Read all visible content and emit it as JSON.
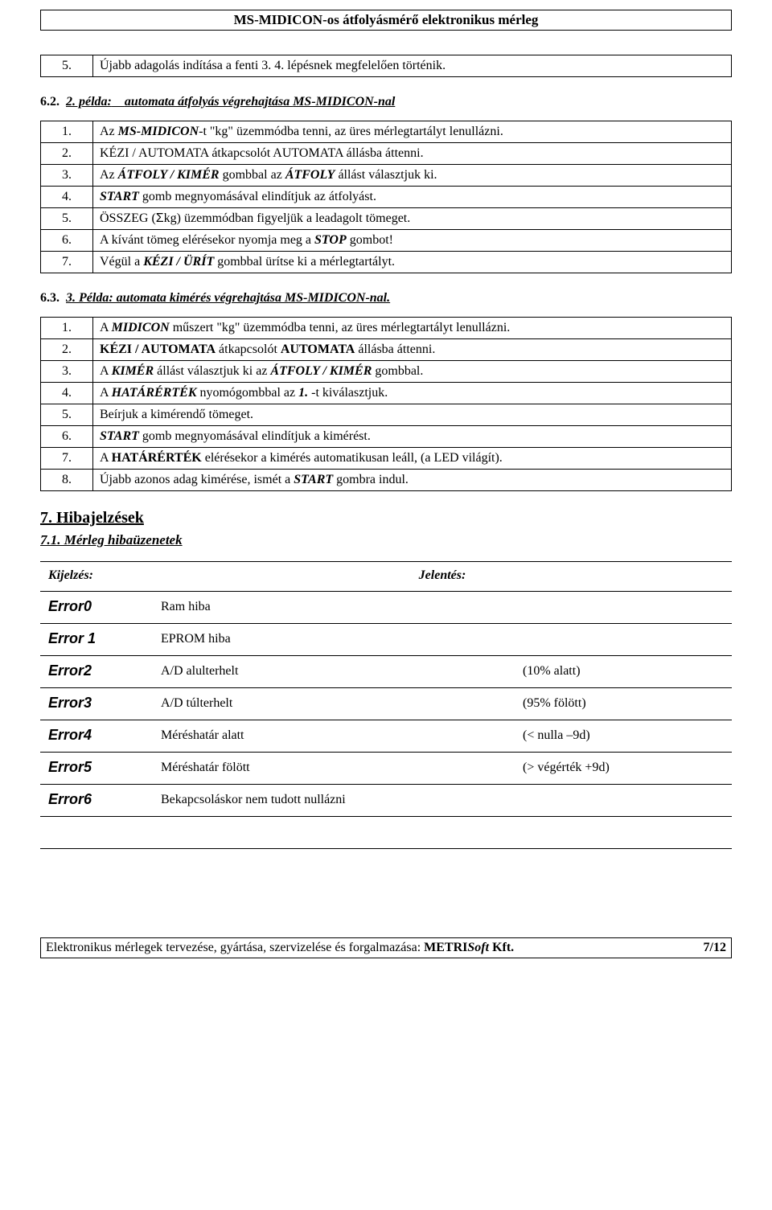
{
  "header": "MS-MIDICON-os átfolyásmérő elektronikus mérleg",
  "table1": {
    "rows": [
      {
        "n": "5.",
        "text": "Újabb adagolás indítása a fenti 3. 4. lépésnek megfelelően történik."
      }
    ]
  },
  "sec62_idx": "6.2.",
  "sec62_a": "2. példa:",
  "sec62_b": "automata átfolyás végrehajtása ",
  "sec62_c": "MS-MIDICON",
  "sec62_d": "-nal",
  "table2": {
    "rows": [
      {
        "n": "1.",
        "t1": "Az ",
        "t2": "MS-MIDICON",
        "t3": "-t \"kg\" üzemmódba tenni, az üres mérlegtartályt lenullázni."
      },
      {
        "n": "2.",
        "t1": "KÉZI / AUTOMATA átkapcsolót AUTOMATA állásba áttenni."
      },
      {
        "n": "3.",
        "t1": "Az ",
        "t2": "ÁTFOLY / KIMÉR",
        "t3": " gombbal az ",
        "t4": "ÁTFOLY",
        "t5": " állást választjuk ki."
      },
      {
        "n": "4.",
        "t1": "START",
        "t2": " gomb megnyomásával elindítjuk az átfolyást."
      },
      {
        "n": "5.",
        "t1": "ÖSSZEG (",
        "t2": "Σ",
        "t3": "kg) üzemmódban figyeljük a leadagolt tömeget."
      },
      {
        "n": "6.",
        "t1": "A kívánt tömeg elérésekor nyomja meg a ",
        "t2": "STOP",
        "t3": " gombot!"
      },
      {
        "n": "7.",
        "t1": "Végül a ",
        "t2": "KÉZI / ÜRÍT",
        "t3": " gombbal ürítse ki a mérlegtartályt."
      }
    ]
  },
  "sec63_idx": "6.3.",
  "sec63_a": "3. Példa: automata kimérés végrehajtása ",
  "sec63_b": "MS-MIDICON",
  "sec63_c": "-nal.",
  "table3": {
    "rows": [
      {
        "n": "1.",
        "t1": "A ",
        "t2": "MIDICON",
        "t3": " műszert \"kg\" üzemmódba tenni, az üres mérlegtartályt lenullázni."
      },
      {
        "n": "2.",
        "t1": "KÉZI / AUTOMATA",
        "t2": " átkapcsolót ",
        "t3": "AUTOMATA",
        "t4": " állásba áttenni."
      },
      {
        "n": "3.",
        "t1": "A ",
        "t2": "KIMÉR",
        "t3": " állást választjuk ki az ",
        "t4": "ÁTFOLY / KIMÉR",
        "t5": " gombbal."
      },
      {
        "n": "4.",
        "t1": "A ",
        "t2": "HATÁRÉRTÉK",
        "t3": " nyomógombbal az ",
        "t4": "1.",
        "t5": " -t kiválasztjuk."
      },
      {
        "n": "5.",
        "t1": "Beírjuk a kimérendő tömeget."
      },
      {
        "n": "6.",
        "t1": "START",
        "t2": " gomb megnyomásával elindítjuk a kimérést."
      },
      {
        "n": "7.",
        "t1": "A ",
        "t2": "HATÁRÉRTÉK",
        "t3": " elérésekor a kimérés automatikusan leáll, (a LED világít)."
      },
      {
        "n": "8.",
        "t1": "Újabb azonos adag kimérése, ismét a ",
        "t2": "START",
        "t3": " gombra indul."
      }
    ]
  },
  "h7": "7.  Hibajelzések",
  "h71": "7.1.  Mérleg hibaüzenetek",
  "errors": {
    "head": {
      "c1": "Kijelzés:",
      "c2": "Jelentés:"
    },
    "rows": [
      {
        "code": "Error0",
        "meaning": "Ram hiba",
        "extra": ""
      },
      {
        "code": "Error 1",
        "meaning": "EPROM hiba",
        "extra": ""
      },
      {
        "code": "Error2",
        "meaning": "A/D alulterhelt",
        "extra": "(10% alatt)"
      },
      {
        "code": "Error3",
        "meaning": "A/D túlterhelt",
        "extra": "(95% fölött)"
      },
      {
        "code": "Error4",
        "meaning": "Méréshatár alatt",
        "extra": "(< nulla –9d)"
      },
      {
        "code": "Error5",
        "meaning": "Méréshatár fölött",
        "extra": "(> végérték +9d)"
      },
      {
        "code": "Error6",
        "meaning": "Bekapcsoláskor nem tudott nullázni",
        "extra": ""
      },
      {
        "code": "",
        "meaning": "",
        "extra": ""
      }
    ]
  },
  "footer": {
    "left_a": "Elektronikus mérlegek tervezése, gyártása, szervizelése és forgalmazása: ",
    "left_b": "METRI",
    "left_c": "Soft",
    "left_d": " Kft.",
    "right": "7/12"
  }
}
